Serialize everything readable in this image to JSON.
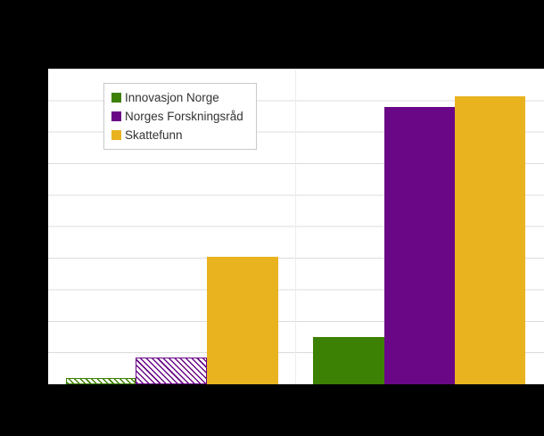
{
  "page": {
    "background_color": "#000000",
    "plot_background_color": "#ffffff",
    "gridline_color": "#dcdcdc",
    "vertical_gridline_color": "#ececec"
  },
  "legend": {
    "position": "top-left-inside-plot",
    "border_color": "#c9c9c9",
    "text_color": "#333333"
  },
  "chart_data": {
    "type": "bar",
    "title": "",
    "xlabel": "",
    "ylabel": "",
    "categories": [
      "",
      ""
    ],
    "category_note": "Two bar groups; category labels and axis tick labels are not visible in the image (hidden in the black margins). Left group bars for the first two series are hatched; right group bars are solid.",
    "ylim": [
      0,
      10
    ],
    "value_note": "Values estimated in gridline units: y-axis spans 10 equal unlabeled gridline intervals from baseline to plot top.",
    "gridlines": {
      "horizontal_count": 10,
      "vertical_count": 1
    },
    "legend_position": "top-left",
    "series": [
      {
        "name": "Innovasjon Norge",
        "color": "#3d8104",
        "values": [
          0.2,
          1.51
        ],
        "fill_styles": [
          "hatched",
          "solid"
        ]
      },
      {
        "name": "Norges Forskningsråd",
        "color": "#6a0787",
        "values": [
          0.85,
          8.8
        ],
        "fill_styles": [
          "hatched",
          "solid"
        ]
      },
      {
        "name": "Skattefunn",
        "color": "#e9b320",
        "values": [
          4.05,
          9.13
        ],
        "fill_styles": [
          "solid",
          "solid"
        ]
      }
    ]
  }
}
